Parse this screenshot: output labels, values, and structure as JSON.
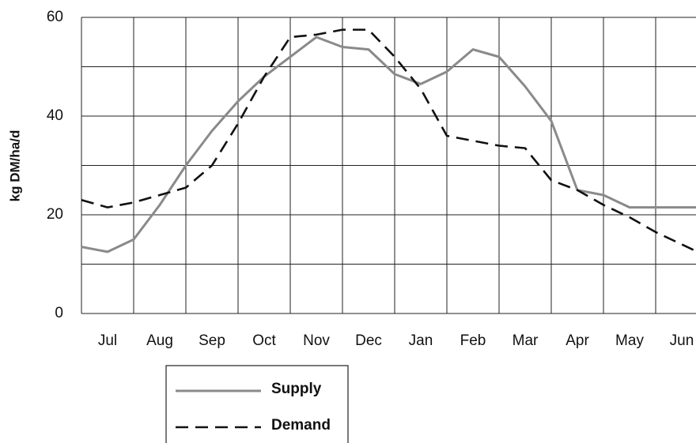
{
  "chart_data": {
    "type": "line",
    "y_label": "kg DM/ha/d",
    "categories": [
      null,
      "Jul",
      null,
      "Aug",
      null,
      "Sep",
      null,
      "Oct",
      null,
      "Nov",
      null,
      "Dec",
      null,
      "Jan",
      null,
      "Feb",
      null,
      "Mar",
      null,
      "Apr",
      null,
      "May",
      null,
      "Jun",
      null
    ],
    "series": [
      {
        "name": "Supply",
        "color": "#8a8a8a",
        "dash": false,
        "values": [
          13.5,
          12.5,
          15,
          22,
          30,
          37,
          43,
          48,
          52,
          56,
          54,
          53.5,
          48.5,
          46.5,
          49,
          53.5,
          52,
          46,
          39,
          25,
          24,
          21.5,
          21.5,
          21.5,
          21.5
        ]
      },
      {
        "name": "Demand",
        "color": "#111111",
        "dash": true,
        "values": [
          23,
          21.5,
          22.5,
          24,
          25.5,
          30,
          38.5,
          48,
          56,
          56.5,
          57.5,
          57.5,
          52,
          45.5,
          36,
          35,
          34,
          33.5,
          27,
          25,
          22,
          19.5,
          16.5,
          14,
          11.5
        ]
      }
    ],
    "ylim": [
      0,
      60
    ],
    "yticks": [
      0,
      20,
      40,
      60
    ],
    "ygrid": [
      0,
      10,
      20,
      30,
      40,
      50,
      60
    ],
    "grid": true
  }
}
